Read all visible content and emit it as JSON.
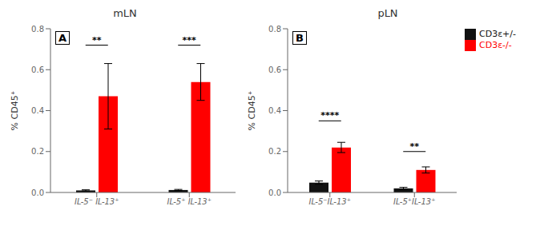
{
  "chart_data": [
    {
      "type": "bar",
      "title": "mLN",
      "label": "A",
      "ylabel": "% CD45⁺",
      "categories": [
        "IL-5⁻ IL-13⁺",
        "IL-5⁺ IL-13⁺"
      ],
      "series": [
        {
          "name": "CD3ε+/-",
          "color": "#111111",
          "values": [
            0.01,
            0.012
          ],
          "errors": [
            0.003,
            0.003
          ]
        },
        {
          "name": "CD3ε-/-",
          "color": "#FF0000",
          "values": [
            0.47,
            0.54
          ],
          "errors": [
            0.16,
            0.09
          ]
        }
      ],
      "annotations": [
        {
          "text": "**",
          "y": 0.72
        },
        {
          "text": "***",
          "y": 0.72
        }
      ],
      "ylim": [
        0,
        0.8
      ],
      "yticks": [
        {
          "value": 0.0,
          "label": "0.0"
        },
        0.2,
        0.4,
        0.6,
        0.8
      ]
    },
    {
      "type": "bar",
      "title": "pLN",
      "label": "B",
      "ylabel": "% CD45⁺",
      "categories": [
        "IL-5⁻IL-13⁺",
        "IL-5⁺IL-13⁺"
      ],
      "series": [
        {
          "name": "CD3ε+/-",
          "color": "#111111",
          "values": [
            0.048,
            0.02
          ],
          "errors": [
            0.008,
            0.005
          ]
        },
        {
          "name": "CD3ε-/-",
          "color": "#FF0000",
          "values": [
            0.22,
            0.11
          ],
          "errors": [
            0.025,
            0.015
          ]
        }
      ],
      "annotations": [
        {
          "text": "****",
          "y": 0.35
        },
        {
          "text": "**",
          "y": 0.2
        }
      ],
      "ylim": [
        0,
        0.8
      ],
      "yticks": [
        {
          "value": 0.0,
          "label": "0.0"
        },
        0.2,
        0.4,
        0.6,
        0.8
      ],
      "legend": "upper right"
    }
  ]
}
